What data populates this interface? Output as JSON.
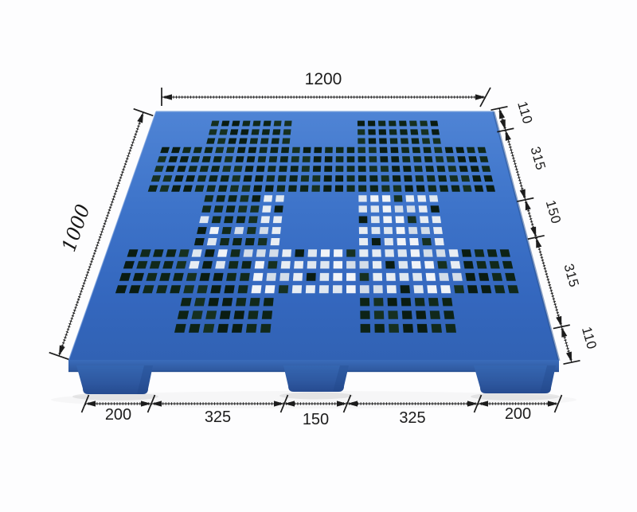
{
  "diagram": {
    "subject": "plastic-pallet-top-perspective",
    "dimensions": {
      "top": {
        "label": "1200"
      },
      "left": {
        "label": "1000"
      },
      "right": {
        "labels": [
          "110",
          "315",
          "150",
          "315",
          "110"
        ]
      },
      "bottom": {
        "labels": [
          "200",
          "325",
          "150",
          "325",
          "200"
        ]
      }
    },
    "colors": {
      "pallet_blue": "#3a6fc6",
      "pallet_blue_light": "#4f84d5",
      "pallet_blue_dark": "#3162b4",
      "hole_dark": "#0d2216",
      "hole_light": "#e8edf3",
      "dimension_line": "#1c1c1c",
      "background": "#fdfdfe"
    }
  }
}
